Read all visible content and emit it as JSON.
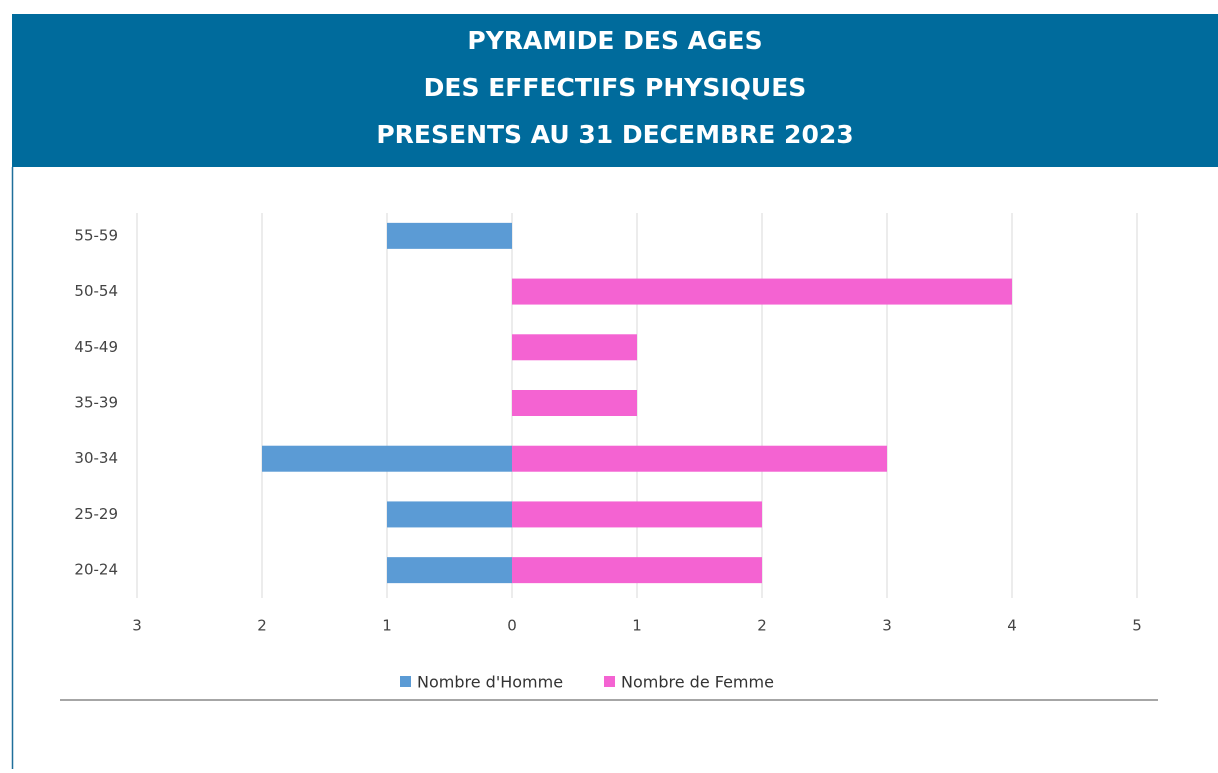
{
  "chart_data": {
    "type": "bar",
    "orientation": "horizontal",
    "title": [
      "PYRAMIDE DES AGES",
      "DES EFFECTIFS PHYSIQUES",
      "PRESENTS AU 31 DECEMBRE 2023"
    ],
    "categories": [
      "55-59",
      "50-54",
      "45-49",
      "35-39",
      "30-34",
      "25-29",
      "20-24"
    ],
    "series": [
      {
        "name": "Nombre d'Homme",
        "color": "#5b9bd5",
        "values": [
          -1,
          null,
          null,
          null,
          -2,
          -1,
          -1
        ]
      },
      {
        "name": "Nombre de Femme",
        "color": "#f463d2",
        "values": [
          null,
          4,
          1,
          1,
          3,
          2,
          2
        ]
      }
    ],
    "xlim": [
      -3,
      5
    ],
    "xticks": [
      {
        "value": -3,
        "label": "3"
      },
      {
        "value": -2,
        "label": "2"
      },
      {
        "value": -1,
        "label": "1"
      },
      0,
      1,
      2,
      3,
      4,
      5
    ],
    "grid": true,
    "legend": "bottom"
  }
}
